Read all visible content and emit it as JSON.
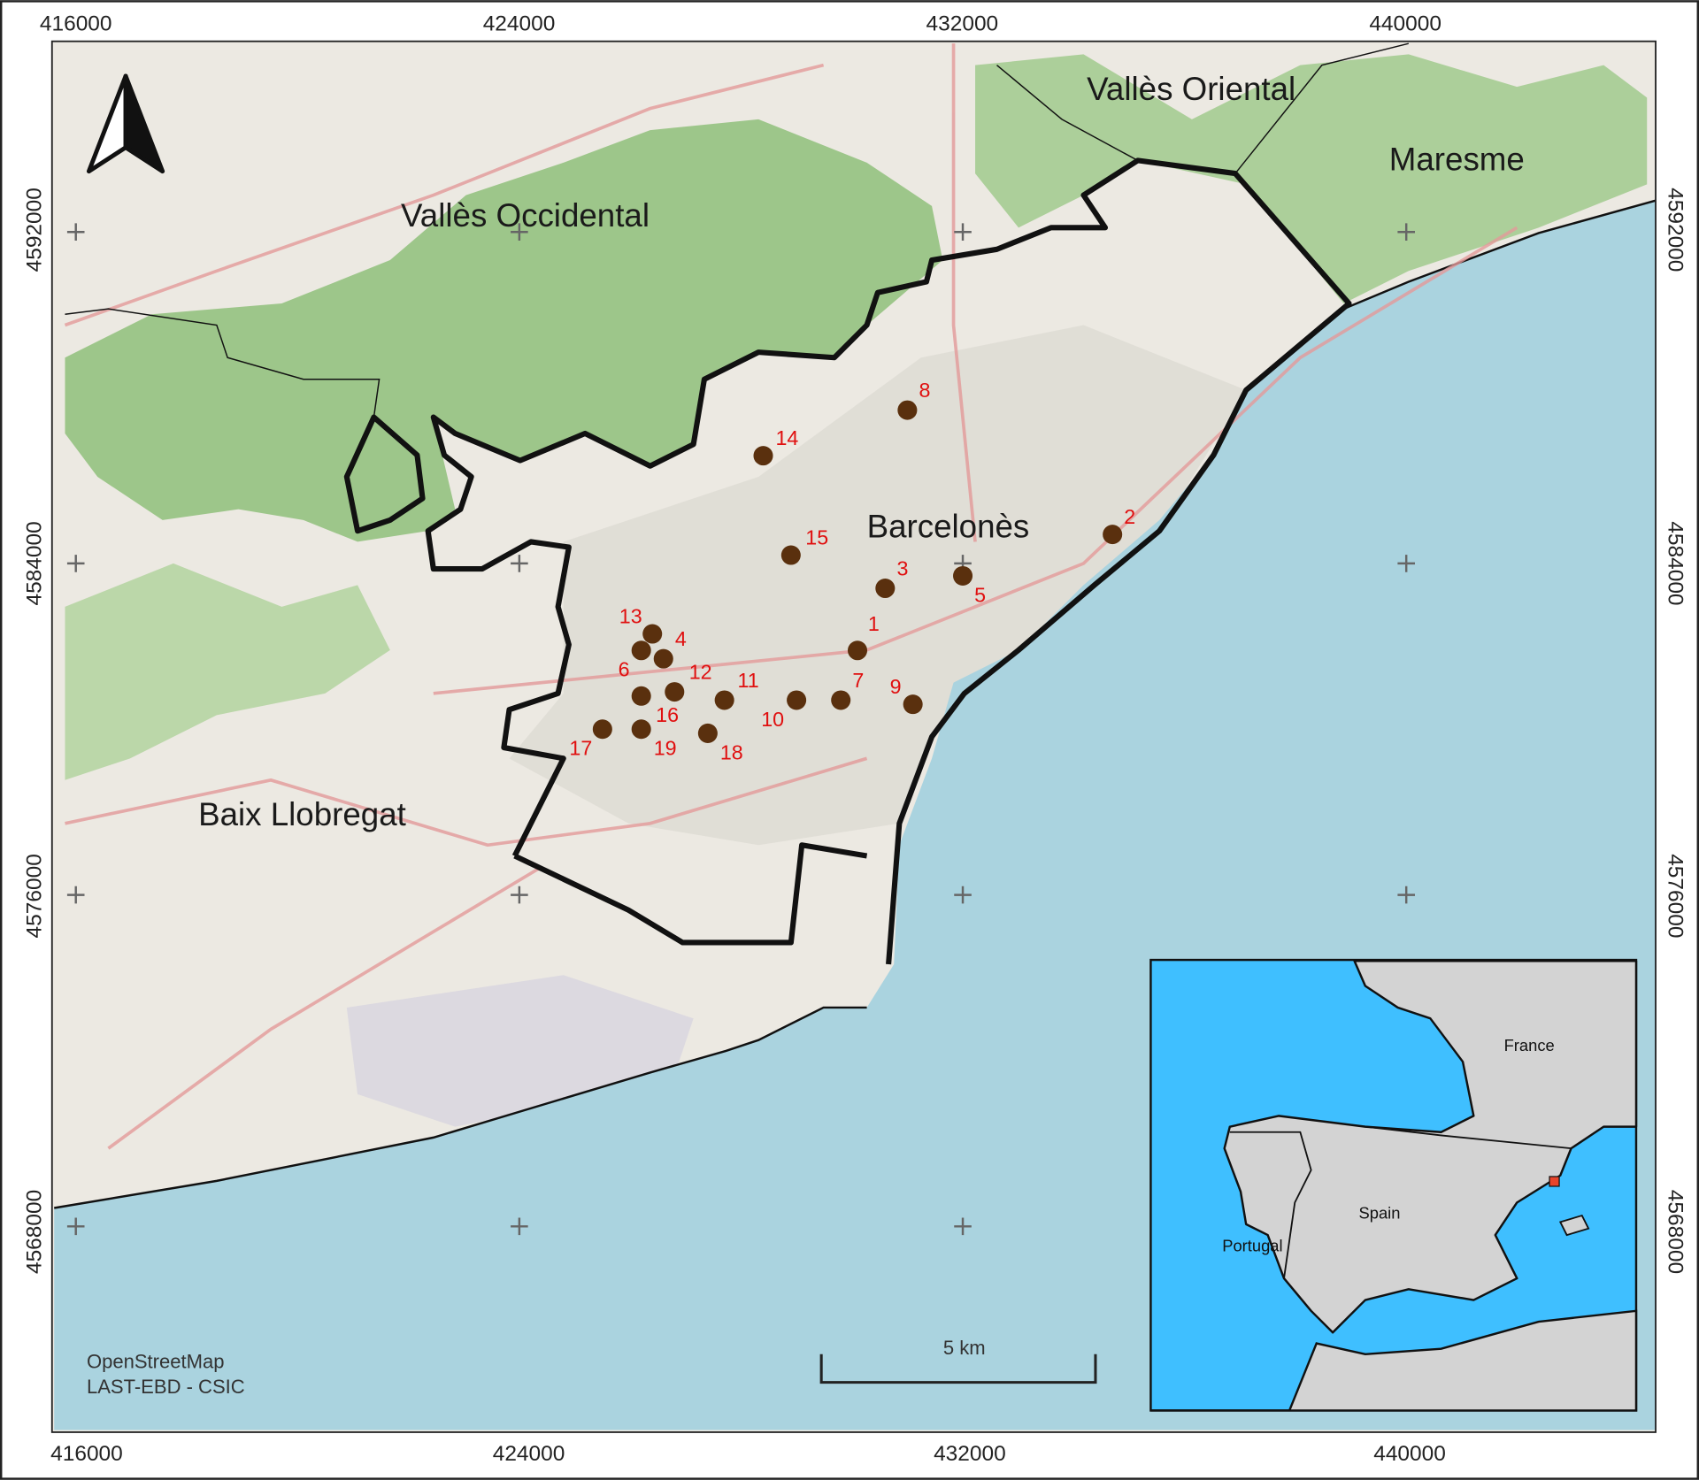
{
  "map": {
    "easting_ticks": [
      "416000",
      "424000",
      "432000",
      "440000"
    ],
    "northing_ticks": [
      "4592000",
      "4584000",
      "4576000",
      "4568000"
    ],
    "regions": {
      "valles_oriental": "Vallès Oriental",
      "maresme": "Maresme",
      "valles_occidental": "Vallès Occidental",
      "barcelones": "Barcelonès",
      "baix_llobregat": "Baix Llobregat"
    },
    "attribution": [
      "OpenStreetMap",
      "LAST-EBD - CSIC"
    ],
    "scale_bar": "5 km",
    "north_arrow": "north-arrow-icon",
    "colors": {
      "sea": "#aad3df",
      "land": "#ece9e2",
      "forest": "#8fbf7a",
      "boundary": "#111111",
      "site": "#5a300e",
      "site_label": "#e01010",
      "inset_sea": "#3fbfff",
      "inset_land": "#d3d3d3",
      "inset_marker": "#e8452c"
    },
    "sites": [
      {
        "id": "1",
        "easting": 430100,
        "northing": 4581900
      },
      {
        "id": "2",
        "easting": 434700,
        "northing": 4584700
      },
      {
        "id": "3",
        "easting": 430600,
        "northing": 4583400
      },
      {
        "id": "4",
        "easting": 426600,
        "northing": 4581700
      },
      {
        "id": "5",
        "easting": 432000,
        "northing": 4583700
      },
      {
        "id": "6",
        "easting": 426200,
        "northing": 4581900
      },
      {
        "id": "7",
        "easting": 429800,
        "northing": 4580700
      },
      {
        "id": "8",
        "easting": 431000,
        "northing": 4587700
      },
      {
        "id": "9",
        "easting": 431100,
        "northing": 4580600
      },
      {
        "id": "10",
        "easting": 429000,
        "northing": 4580700
      },
      {
        "id": "11",
        "easting": 427700,
        "northing": 4580700
      },
      {
        "id": "12",
        "easting": 426800,
        "northing": 4580900
      },
      {
        "id": "13",
        "easting": 426400,
        "northing": 4582300
      },
      {
        "id": "14",
        "easting": 428400,
        "northing": 4586600
      },
      {
        "id": "15",
        "easting": 428900,
        "northing": 4584200
      },
      {
        "id": "16",
        "easting": 426200,
        "northing": 4580800
      },
      {
        "id": "17",
        "easting": 425500,
        "northing": 4580000
      },
      {
        "id": "18",
        "easting": 427400,
        "northing": 4579900
      },
      {
        "id": "19",
        "easting": 426200,
        "northing": 4580000
      }
    ]
  },
  "inset": {
    "france": "France",
    "spain": "Spain",
    "portugal": "Portugal"
  }
}
